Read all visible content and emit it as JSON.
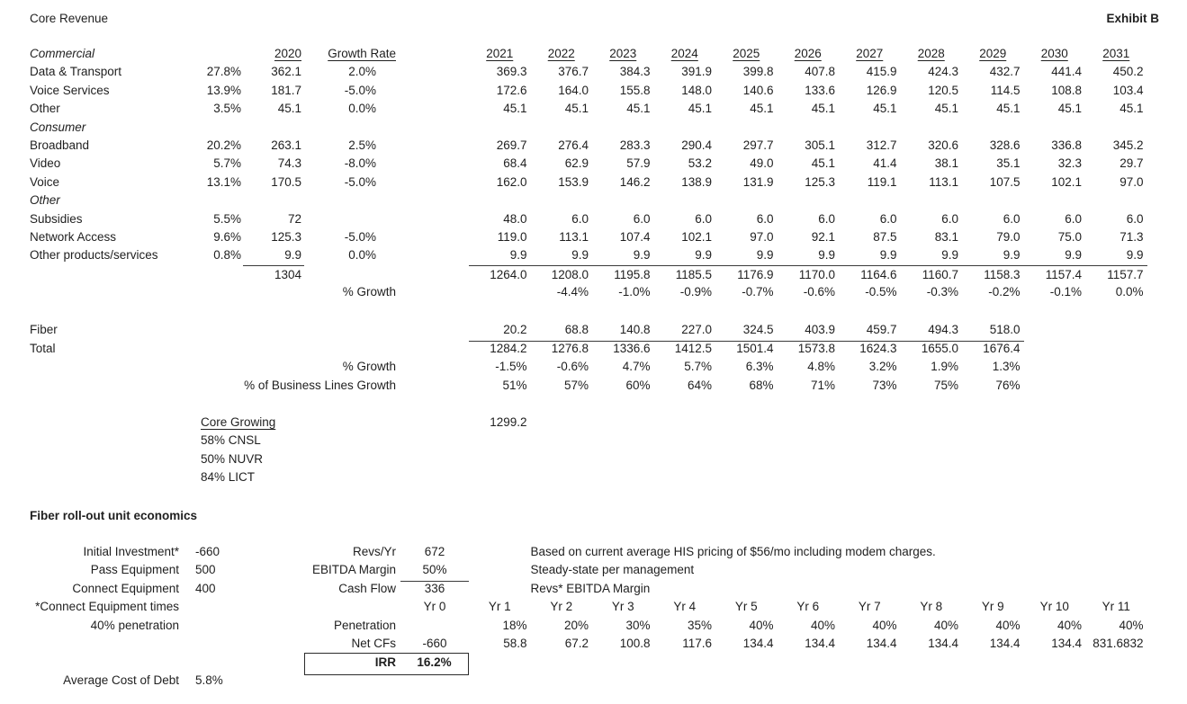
{
  "title": "Core Revenue",
  "exhibit": "Exhibit B",
  "table": {
    "headers": {
      "y2020": "2020",
      "growth": "Growth Rate",
      "years": [
        "2021",
        "2022",
        "2023",
        "2024",
        "2025",
        "2026",
        "2027",
        "2028",
        "2029",
        "2030",
        "2031"
      ]
    },
    "rows": [
      {
        "kind": "header-section",
        "label": "Commercial"
      },
      {
        "kind": "data",
        "label": "Data & Transport",
        "pct": "27.8%",
        "y2020": "362.1",
        "growth": "2.0%",
        "values": [
          "369.3",
          "376.7",
          "384.3",
          "391.9",
          "399.8",
          "407.8",
          "415.9",
          "424.3",
          "432.7",
          "441.4",
          "450.2"
        ]
      },
      {
        "kind": "data",
        "label": "Voice Services",
        "pct": "13.9%",
        "y2020": "181.7",
        "growth": "-5.0%",
        "values": [
          "172.6",
          "164.0",
          "155.8",
          "148.0",
          "140.6",
          "133.6",
          "126.9",
          "120.5",
          "114.5",
          "108.8",
          "103.4"
        ]
      },
      {
        "kind": "data",
        "label": "Other",
        "pct": "3.5%",
        "y2020": "45.1",
        "growth": "0.0%",
        "values": [
          "45.1",
          "45.1",
          "45.1",
          "45.1",
          "45.1",
          "45.1",
          "45.1",
          "45.1",
          "45.1",
          "45.1",
          "45.1"
        ]
      },
      {
        "kind": "section",
        "label": "Consumer"
      },
      {
        "kind": "data",
        "label": "Broadband",
        "pct": "20.2%",
        "y2020": "263.1",
        "growth": "2.5%",
        "values": [
          "269.7",
          "276.4",
          "283.3",
          "290.4",
          "297.7",
          "305.1",
          "312.7",
          "320.6",
          "328.6",
          "336.8",
          "345.2"
        ]
      },
      {
        "kind": "data",
        "label": "Video",
        "pct": "5.7%",
        "y2020": "74.3",
        "growth": "-8.0%",
        "values": [
          "68.4",
          "62.9",
          "57.9",
          "53.2",
          "49.0",
          "45.1",
          "41.4",
          "38.1",
          "35.1",
          "32.3",
          "29.7"
        ]
      },
      {
        "kind": "data",
        "label": "Voice",
        "pct": "13.1%",
        "y2020": "170.5",
        "growth": "-5.0%",
        "values": [
          "162.0",
          "153.9",
          "146.2",
          "138.9",
          "131.9",
          "125.3",
          "119.1",
          "113.1",
          "107.5",
          "102.1",
          "97.0"
        ]
      },
      {
        "kind": "section",
        "label": "Other"
      },
      {
        "kind": "data",
        "label": "Subsidies",
        "pct": "5.5%",
        "y2020": "72",
        "growth": "",
        "values": [
          "48.0",
          "6.0",
          "6.0",
          "6.0",
          "6.0",
          "6.0",
          "6.0",
          "6.0",
          "6.0",
          "6.0",
          "6.0"
        ]
      },
      {
        "kind": "data",
        "label": "Network Access",
        "pct": "9.6%",
        "y2020": "125.3",
        "growth": "-5.0%",
        "values": [
          "119.0",
          "113.1",
          "107.4",
          "102.1",
          "97.0",
          "92.1",
          "87.5",
          "83.1",
          "79.0",
          "75.0",
          "71.3"
        ]
      },
      {
        "kind": "data",
        "label": "Other products/services",
        "pct": "0.8%",
        "y2020": "9.9",
        "growth": "0.0%",
        "values": [
          "9.9",
          "9.9",
          "9.9",
          "9.9",
          "9.9",
          "9.9",
          "9.9",
          "9.9",
          "9.9",
          "9.9",
          "9.9"
        ]
      },
      {
        "kind": "total",
        "y2020": "1304",
        "values": [
          "1264.0",
          "1208.0",
          "1195.8",
          "1185.5",
          "1176.9",
          "1170.0",
          "1164.6",
          "1160.7",
          "1158.3",
          "1157.4",
          "1157.7"
        ]
      },
      {
        "kind": "growth",
        "label": "% Growth",
        "values": [
          "",
          "-4.4%",
          "-1.0%",
          "-0.9%",
          "-0.7%",
          "-0.6%",
          "-0.5%",
          "-0.3%",
          "-0.2%",
          "-0.1%",
          "0.0%"
        ]
      }
    ]
  },
  "summary": {
    "fiber": {
      "label": "Fiber",
      "values": [
        "20.2",
        "68.8",
        "140.8",
        "227.0",
        "324.5",
        "403.9",
        "459.7",
        "494.3",
        "518.0"
      ]
    },
    "total": {
      "label": "Total",
      "values": [
        "1284.2",
        "1276.8",
        "1336.6",
        "1412.5",
        "1501.4",
        "1573.8",
        "1624.3",
        "1655.0",
        "1676.4"
      ]
    },
    "growth": {
      "label": "% Growth",
      "values": [
        "-1.5%",
        "-0.6%",
        "4.7%",
        "5.7%",
        "6.3%",
        "4.8%",
        "3.2%",
        "1.9%",
        "1.3%"
      ]
    },
    "biz": {
      "label": "% of Business Lines Growth",
      "values": [
        "51%",
        "57%",
        "60%",
        "64%",
        "68%",
        "71%",
        "73%",
        "75%",
        "76%"
      ]
    }
  },
  "core_growing": {
    "label": "Core Growing",
    "value": "1299.2",
    "notes": [
      "58% CNSL",
      "50% NUVR",
      "84% LICT"
    ]
  },
  "fiber_econ": {
    "title": "Fiber roll-out unit economics",
    "rows": [
      {
        "left_label": "Initial Investment*",
        "left_value": "-660",
        "mid_label": "Revs/Yr",
        "mid_value": "672",
        "note": "Based on current average HIS pricing of $56/mo including modem charges."
      },
      {
        "left_label": "Pass Equipment",
        "left_value": "500",
        "mid_label": "EBITDA Margin",
        "mid_value": "50%",
        "note": "Steady-state per management",
        "mid_underline": true
      },
      {
        "left_label": "Connect Equipment",
        "left_value": "400",
        "mid_label": "Cash Flow",
        "mid_value": "336",
        "note": "Revs* EBITDA Margin"
      }
    ],
    "connect_note": "*Connect Equipment times",
    "penetration_note": "40% penetration",
    "yr0_header": "Yr 0",
    "yr_headers": [
      "Yr 1",
      "Yr 2",
      "Yr 3",
      "Yr 4",
      "Yr 5",
      "Yr 6",
      "Yr 7",
      "Yr 8",
      "Yr 9",
      "Yr 10",
      "Yr 11"
    ],
    "penetration_label": "Penetration",
    "penetration_values": [
      "18%",
      "20%",
      "30%",
      "35%",
      "40%",
      "40%",
      "40%",
      "40%",
      "40%",
      "40%",
      "40%"
    ],
    "netcf_label": "Net CFs",
    "netcf_yr0": "-660",
    "netcf_values": [
      "58.8",
      "67.2",
      "100.8",
      "117.6",
      "134.4",
      "134.4",
      "134.4",
      "134.4",
      "134.4",
      "134.4",
      "831.6832"
    ],
    "irr_label": "IRR",
    "irr_value": "16.2%",
    "avg_debt_label": "Average Cost of Debt",
    "avg_debt_value": "5.8%"
  }
}
